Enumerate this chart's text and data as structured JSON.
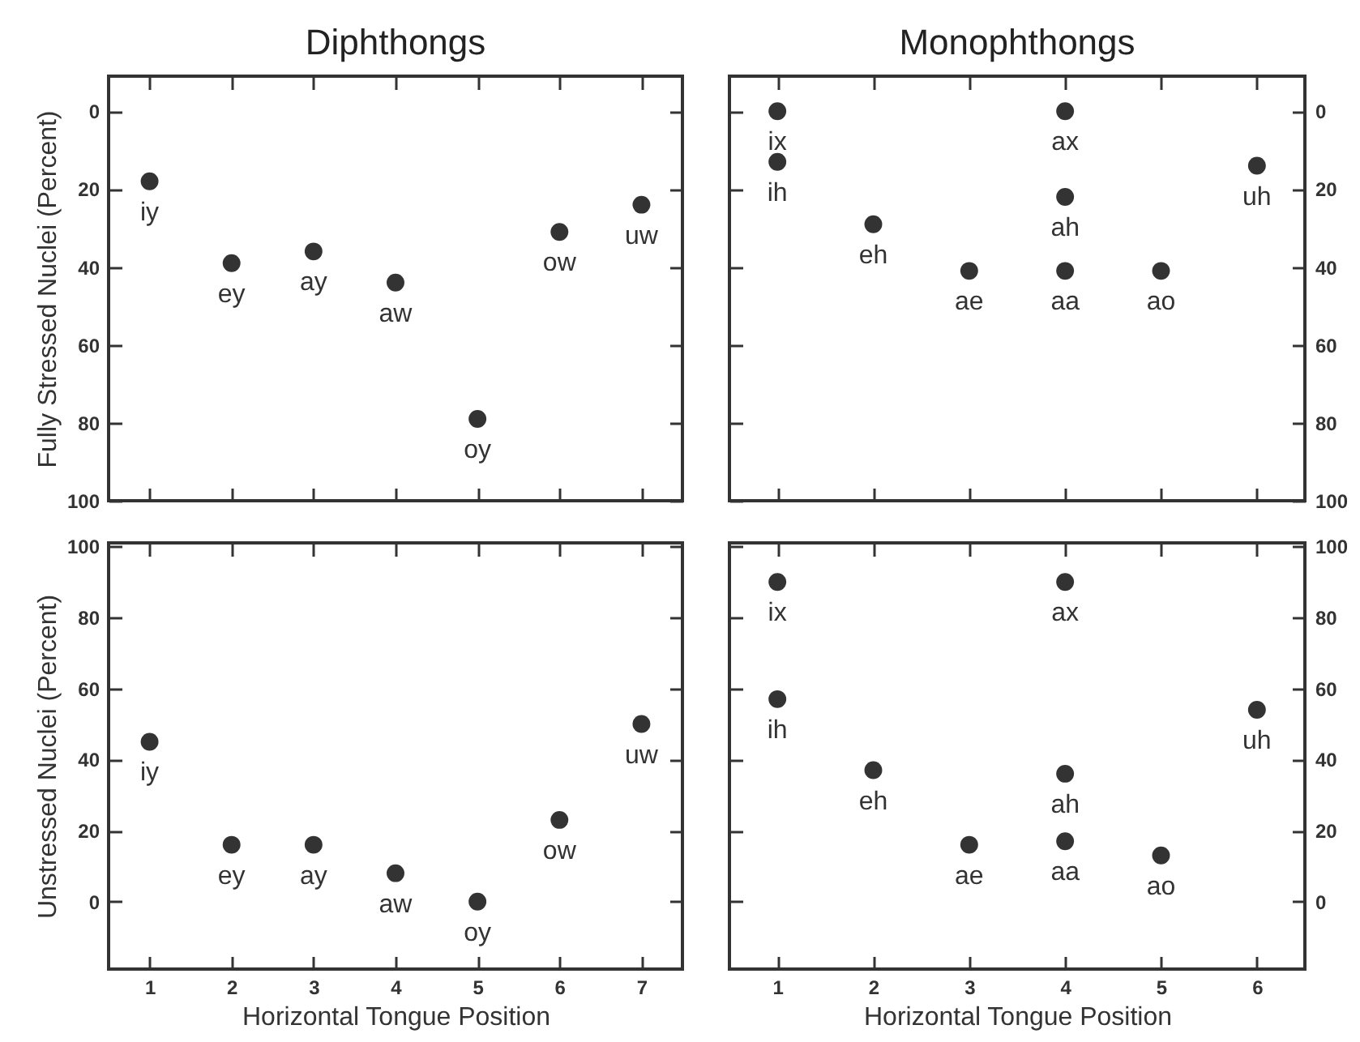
{
  "chart_data": [
    {
      "type": "scatter",
      "title": "Diphthongs",
      "ylabel": "Fully Stressed Nuclei (Percent)",
      "x": [
        1,
        2,
        3,
        4,
        5,
        6,
        7
      ],
      "values": [
        18,
        39,
        36,
        44,
        79,
        31,
        24
      ],
      "color": "#333333",
      "marker": "circle",
      "xlim": [
        0.5,
        7.5
      ],
      "ylim": [
        100,
        -9
      ],
      "xticks": [
        1,
        2,
        3,
        4,
        5,
        6,
        7
      ],
      "yticks": [
        0,
        20,
        40,
        60,
        80,
        100
      ],
      "tick_labels": "y",
      "annotations": [
        {
          "text": "iy",
          "x": 1,
          "y": 18
        },
        {
          "text": "ey",
          "x": 2,
          "y": 39
        },
        {
          "text": "ay",
          "x": 3,
          "y": 36
        },
        {
          "text": "aw",
          "x": 4,
          "y": 44
        },
        {
          "text": "oy",
          "x": 5,
          "y": 79
        },
        {
          "text": "ow",
          "x": 6,
          "y": 31
        },
        {
          "text": "uw",
          "x": 7,
          "y": 24
        }
      ]
    },
    {
      "type": "scatter",
      "title": "Monophthongs",
      "x": [
        1,
        1,
        2,
        3,
        4,
        4,
        4,
        5,
        6
      ],
      "values": [
        0,
        13,
        29,
        41,
        0,
        22,
        41,
        41,
        14
      ],
      "color": "#333333",
      "marker": "circle",
      "xlim": [
        0.5,
        6.5
      ],
      "ylim": [
        100,
        -9
      ],
      "xticks": [
        1,
        2,
        3,
        4,
        5,
        6
      ],
      "yticks": [
        0,
        20,
        40,
        60,
        80,
        100
      ],
      "tick_labels": "y",
      "annotations": [
        {
          "text": "ix",
          "x": 1,
          "y": 0
        },
        {
          "text": "ih",
          "x": 1,
          "y": 13
        },
        {
          "text": "eh",
          "x": 2,
          "y": 29
        },
        {
          "text": "ae",
          "x": 3,
          "y": 41
        },
        {
          "text": "ax",
          "x": 4,
          "y": 0
        },
        {
          "text": "ah",
          "x": 4,
          "y": 22
        },
        {
          "text": "aa",
          "x": 4,
          "y": 41
        },
        {
          "text": "ao",
          "x": 5,
          "y": 41
        },
        {
          "text": "uh",
          "x": 6,
          "y": 14
        }
      ]
    },
    {
      "type": "scatter",
      "xlabel": "Horizontal Tongue Position",
      "ylabel": "Unstressed Nuclei (Percent)",
      "x": [
        1,
        2,
        3,
        4,
        5,
        6,
        7
      ],
      "values": [
        45,
        16,
        16,
        8,
        0,
        23,
        50
      ],
      "color": "#333333",
      "marker": "circle",
      "xlim": [
        0.5,
        7.5
      ],
      "ylim": [
        -19,
        101
      ],
      "xticks": [
        1,
        2,
        3,
        4,
        5,
        6,
        7
      ],
      "yticks": [
        0,
        20,
        40,
        60,
        80,
        100
      ],
      "annotations": [
        {
          "text": "iy",
          "x": 1,
          "y": 45
        },
        {
          "text": "ey",
          "x": 2,
          "y": 16
        },
        {
          "text": "ay",
          "x": 3,
          "y": 16
        },
        {
          "text": "aw",
          "x": 4,
          "y": 8
        },
        {
          "text": "oy",
          "x": 5,
          "y": 0
        },
        {
          "text": "ow",
          "x": 6,
          "y": 23
        },
        {
          "text": "uw",
          "x": 7,
          "y": 50
        }
      ]
    },
    {
      "type": "scatter",
      "xlabel": "Horizontal Tongue Position",
      "x": [
        1,
        1,
        2,
        3,
        4,
        4,
        4,
        5,
        6
      ],
      "values": [
        90,
        57,
        37,
        16,
        90,
        36,
        17,
        13,
        54
      ],
      "color": "#333333",
      "marker": "circle",
      "xlim": [
        0.5,
        6.5
      ],
      "ylim": [
        -19,
        101
      ],
      "xticks": [
        1,
        2,
        3,
        4,
        5,
        6
      ],
      "yticks": [
        0,
        20,
        40,
        60,
        80,
        100
      ],
      "annotations": [
        {
          "text": "ix",
          "x": 1,
          "y": 90
        },
        {
          "text": "ih",
          "x": 1,
          "y": 57
        },
        {
          "text": "eh",
          "x": 2,
          "y": 37
        },
        {
          "text": "ae",
          "x": 3,
          "y": 16
        },
        {
          "text": "ax",
          "x": 4,
          "y": 90
        },
        {
          "text": "ah",
          "x": 4,
          "y": 36
        },
        {
          "text": "aa",
          "x": 4,
          "y": 17
        },
        {
          "text": "ao",
          "x": 5,
          "y": 13
        },
        {
          "text": "uh",
          "x": 6,
          "y": 54
        }
      ]
    }
  ]
}
